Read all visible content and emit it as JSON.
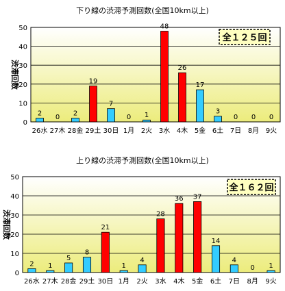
{
  "colors": {
    "plot_top": "#ffffff",
    "plot_bottom": "#ecec7c",
    "red_bar": "#ff0000",
    "blue_bar": "#33ccff",
    "total_box_fill": "#ffffc0",
    "gridline": "#000000"
  },
  "chart_data": [
    {
      "type": "bar",
      "title": "下り線の渋滞予測回数(全国10km以上)",
      "ylabel": "渋滞回数",
      "total_label": "全１２５回",
      "categories": [
        "26水",
        "27木",
        "28金",
        "29土",
        "30日",
        "1月",
        "2火",
        "3水",
        "4木",
        "5金",
        "6土",
        "7日",
        "8月",
        "9火"
      ],
      "values": [
        2,
        0,
        2,
        19,
        7,
        0,
        1,
        48,
        26,
        17,
        3,
        0,
        0,
        0
      ],
      "bar_colors": [
        "blue",
        "blue",
        "blue",
        "red",
        "blue",
        "blue",
        "blue",
        "red",
        "red",
        "blue",
        "blue",
        "blue",
        "blue",
        "blue"
      ],
      "ylim": [
        0,
        50
      ],
      "yticks": [
        0,
        10,
        20,
        30,
        40,
        50
      ],
      "grid": true
    },
    {
      "type": "bar",
      "title": "上り線の渋滞予測回数(全国10km以上)",
      "ylabel": "渋滞回数",
      "total_label": "全１６２回",
      "categories": [
        "26水",
        "27木",
        "28金",
        "29土",
        "30日",
        "1月",
        "2火",
        "3水",
        "4木",
        "5金",
        "6土",
        "7日",
        "8月",
        "9火"
      ],
      "values": [
        2,
        1,
        5,
        8,
        21,
        1,
        4,
        28,
        36,
        37,
        14,
        4,
        0,
        1
      ],
      "bar_colors": [
        "blue",
        "blue",
        "blue",
        "blue",
        "red",
        "blue",
        "blue",
        "red",
        "red",
        "red",
        "blue",
        "blue",
        "blue",
        "blue"
      ],
      "ylim": [
        0,
        50
      ],
      "yticks": [
        0,
        10,
        20,
        30,
        40,
        50
      ],
      "grid": true
    }
  ]
}
